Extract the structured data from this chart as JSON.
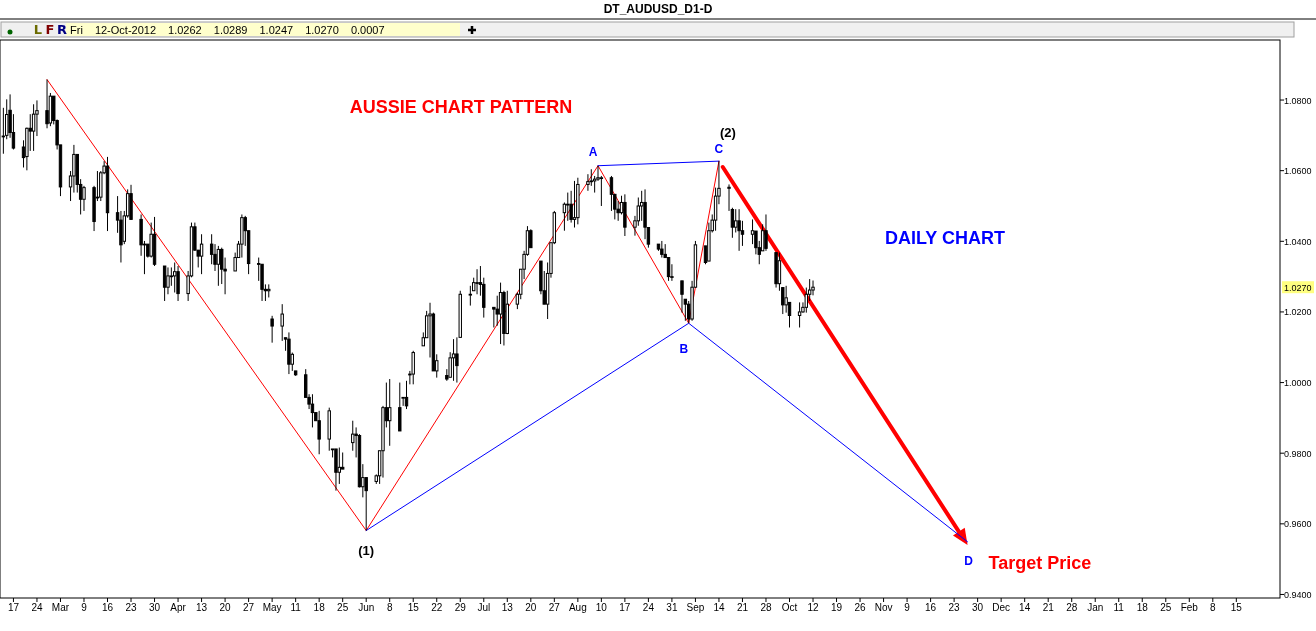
{
  "chart_data": {
    "type": "candlestick",
    "title": "DT_AUDUSD_D1-D",
    "subtitle": "Fri 12-Oct-2012 1.0262 1.0289 1.0247 1.0270 0.0007",
    "xlim": [
      "2012-02-13",
      "2013-02-28"
    ],
    "ylim": [
      0.939,
      1.097
    ],
    "yticks": [
      {
        "value": 0.94,
        "label": "0.9400"
      },
      {
        "value": 0.96,
        "label": "0.9600"
      },
      {
        "value": 0.98,
        "label": "0.9800"
      },
      {
        "value": 1.0,
        "label": "1.0000"
      },
      {
        "value": 1.02,
        "label": "1.0200"
      },
      {
        "value": 1.04,
        "label": "1.0400"
      },
      {
        "value": 1.06,
        "label": "1.0600"
      },
      {
        "value": 1.08,
        "label": "1.0800"
      }
    ],
    "xticks": [
      {
        "value": "2012-02-17",
        "label": "17"
      },
      {
        "value": "2012-02-24",
        "label": "24"
      },
      {
        "value": "2012-03-02",
        "label": "Mar"
      },
      {
        "value": "2012-03-09",
        "label": "9"
      },
      {
        "value": "2012-03-16",
        "label": "16"
      },
      {
        "value": "2012-03-23",
        "label": "23"
      },
      {
        "value": "2012-03-30",
        "label": "30"
      },
      {
        "value": "2012-04-06",
        "label": "Apr"
      },
      {
        "value": "2012-04-13",
        "label": "13"
      },
      {
        "value": "2012-04-20",
        "label": "20"
      },
      {
        "value": "2012-04-27",
        "label": "27"
      },
      {
        "value": "2012-05-04",
        "label": "May"
      },
      {
        "value": "2012-05-11",
        "label": "11"
      },
      {
        "value": "2012-05-18",
        "label": "18"
      },
      {
        "value": "2012-05-25",
        "label": "25"
      },
      {
        "value": "2012-06-01",
        "label": "Jun"
      },
      {
        "value": "2012-06-08",
        "label": "8"
      },
      {
        "value": "2012-06-15",
        "label": "15"
      },
      {
        "value": "2012-06-22",
        "label": "22"
      },
      {
        "value": "2012-06-29",
        "label": "29"
      },
      {
        "value": "2012-07-06",
        "label": "Jul"
      },
      {
        "value": "2012-07-13",
        "label": "13"
      },
      {
        "value": "2012-07-20",
        "label": "20"
      },
      {
        "value": "2012-07-27",
        "label": "27"
      },
      {
        "value": "2012-08-03",
        "label": "Aug"
      },
      {
        "value": "2012-08-10",
        "label": "10"
      },
      {
        "value": "2012-08-17",
        "label": "17"
      },
      {
        "value": "2012-08-24",
        "label": "24"
      },
      {
        "value": "2012-08-31",
        "label": "31"
      },
      {
        "value": "2012-09-07",
        "label": "Sep"
      },
      {
        "value": "2012-09-14",
        "label": "14"
      },
      {
        "value": "2012-09-21",
        "label": "21"
      },
      {
        "value": "2012-09-28",
        "label": "28"
      },
      {
        "value": "2012-10-05",
        "label": "Oct"
      },
      {
        "value": "2012-10-12",
        "label": "12"
      },
      {
        "value": "2012-10-19",
        "label": "19"
      },
      {
        "value": "2012-10-26",
        "label": "26"
      },
      {
        "value": "2012-11-02",
        "label": "Nov"
      },
      {
        "value": "2012-11-09",
        "label": "9"
      },
      {
        "value": "2012-11-16",
        "label": "16"
      },
      {
        "value": "2012-11-23",
        "label": "23"
      },
      {
        "value": "2012-11-30",
        "label": "30"
      },
      {
        "value": "2012-12-07",
        "label": "Dec"
      },
      {
        "value": "2012-12-14",
        "label": "14"
      },
      {
        "value": "2012-12-21",
        "label": "21"
      },
      {
        "value": "2012-12-28",
        "label": "28"
      },
      {
        "value": "2013-01-04",
        "label": "Jan"
      },
      {
        "value": "2013-01-11",
        "label": "11"
      },
      {
        "value": "2013-01-18",
        "label": "18"
      },
      {
        "value": "2013-01-25",
        "label": "25"
      },
      {
        "value": "2013-02-01",
        "label": "Feb"
      },
      {
        "value": "2013-02-08",
        "label": "8"
      },
      {
        "value": "2013-02-15",
        "label": "15"
      }
    ],
    "series": [
      {
        "color": "#000000",
        "x": [
          "2012-02-14",
          "2012-02-15",
          "2012-02-16",
          "2012-02-17",
          "2012-02-20",
          "2012-02-21",
          "2012-02-22",
          "2012-02-23",
          "2012-02-24",
          "2012-02-27",
          "2012-02-28",
          "2012-02-29",
          "2012-03-01",
          "2012-03-02",
          "2012-03-05",
          "2012-03-06",
          "2012-03-07",
          "2012-03-08",
          "2012-03-09",
          "2012-03-12",
          "2012-03-13",
          "2012-03-14",
          "2012-03-15",
          "2012-03-16",
          "2012-03-19",
          "2012-03-20",
          "2012-03-21",
          "2012-03-22",
          "2012-03-23",
          "2012-03-26",
          "2012-03-27",
          "2012-03-28",
          "2012-03-29",
          "2012-03-30",
          "2012-04-02",
          "2012-04-03",
          "2012-04-04",
          "2012-04-05",
          "2012-04-06",
          "2012-04-09",
          "2012-04-10",
          "2012-04-11",
          "2012-04-12",
          "2012-04-13",
          "2012-04-16",
          "2012-04-17",
          "2012-04-18",
          "2012-04-19",
          "2012-04-20",
          "2012-04-23",
          "2012-04-24",
          "2012-04-25",
          "2012-04-26",
          "2012-04-27",
          "2012-04-30",
          "2012-05-01",
          "2012-05-02",
          "2012-05-03",
          "2012-05-04",
          "2012-05-07",
          "2012-05-08",
          "2012-05-09",
          "2012-05-10",
          "2012-05-11",
          "2012-05-14",
          "2012-05-15",
          "2012-05-16",
          "2012-05-17",
          "2012-05-18",
          "2012-05-21",
          "2012-05-22",
          "2012-05-23",
          "2012-05-24",
          "2012-05-25",
          "2012-05-28",
          "2012-05-29",
          "2012-05-30",
          "2012-05-31",
          "2012-06-01",
          "2012-06-04",
          "2012-06-05",
          "2012-06-06",
          "2012-06-07",
          "2012-06-08",
          "2012-06-11",
          "2012-06-12",
          "2012-06-13",
          "2012-06-14",
          "2012-06-15",
          "2012-06-18",
          "2012-06-19",
          "2012-06-20",
          "2012-06-21",
          "2012-06-22",
          "2012-06-25",
          "2012-06-26",
          "2012-06-27",
          "2012-06-28",
          "2012-06-29",
          "2012-07-02",
          "2012-07-03",
          "2012-07-04",
          "2012-07-05",
          "2012-07-06",
          "2012-07-09",
          "2012-07-10",
          "2012-07-11",
          "2012-07-12",
          "2012-07-13",
          "2012-07-16",
          "2012-07-17",
          "2012-07-18",
          "2012-07-19",
          "2012-07-20",
          "2012-07-23",
          "2012-07-24",
          "2012-07-25",
          "2012-07-26",
          "2012-07-27",
          "2012-07-30",
          "2012-07-31",
          "2012-08-01",
          "2012-08-02",
          "2012-08-03",
          "2012-08-06",
          "2012-08-07",
          "2012-08-08",
          "2012-08-09",
          "2012-08-10",
          "2012-08-13",
          "2012-08-14",
          "2012-08-15",
          "2012-08-16",
          "2012-08-17",
          "2012-08-20",
          "2012-08-21",
          "2012-08-22",
          "2012-08-23",
          "2012-08-24",
          "2012-08-27",
          "2012-08-28",
          "2012-08-29",
          "2012-08-30",
          "2012-08-31",
          "2012-09-03",
          "2012-09-04",
          "2012-09-05",
          "2012-09-06",
          "2012-09-07",
          "2012-09-10",
          "2012-09-11",
          "2012-09-12",
          "2012-09-13",
          "2012-09-14",
          "2012-09-17",
          "2012-09-18",
          "2012-09-19",
          "2012-09-20",
          "2012-09-21",
          "2012-09-24",
          "2012-09-25",
          "2012-09-26",
          "2012-09-27",
          "2012-09-28",
          "2012-10-01",
          "2012-10-02",
          "2012-10-03",
          "2012-10-04",
          "2012-10-05",
          "2012-10-08",
          "2012-10-09",
          "2012-10-10",
          "2012-10-11",
          "2012-10-12"
        ],
        "ohlc": [
          [
            1.0698,
            1.0778,
            1.0648,
            1.0698
          ],
          [
            1.07,
            1.0802,
            1.0689,
            1.0759
          ],
          [
            1.0771,
            1.0816,
            1.0693,
            1.0708
          ],
          [
            1.0708,
            1.076,
            1.066,
            1.0664
          ],
          [
            1.0667,
            1.0686,
            1.0609,
            1.0637
          ],
          [
            1.064,
            1.0722,
            1.0601,
            1.072
          ],
          [
            1.072,
            1.076,
            1.0656,
            1.0712
          ],
          [
            1.0712,
            1.0788,
            1.0656,
            1.076
          ],
          [
            1.076,
            1.0799,
            1.0698,
            1.077
          ],
          [
            1.077,
            1.0858,
            1.072,
            1.0733
          ],
          [
            1.0735,
            1.082,
            1.0726,
            1.0811
          ],
          [
            1.0811,
            1.0811,
            1.0731,
            1.0742
          ],
          [
            1.0742,
            1.0745,
            1.066,
            1.0673
          ],
          [
            1.0673,
            1.0673,
            1.0528,
            1.0554
          ],
          [
            1.0554,
            1.0599,
            1.0514,
            1.0585
          ],
          [
            1.0585,
            1.0673,
            1.0538,
            1.0646
          ],
          [
            1.0646,
            1.0646,
            1.0538,
            1.0561
          ],
          [
            1.0561,
            1.0576,
            1.0476,
            1.0519
          ],
          [
            1.0519,
            1.0557,
            1.0486,
            1.0552
          ],
          [
            1.0552,
            1.0557,
            1.0429,
            1.0456
          ],
          [
            1.0525,
            1.0599,
            1.0514,
            1.0525
          ],
          [
            1.0525,
            1.0599,
            1.0514,
            1.0594
          ],
          [
            1.0594,
            1.0627,
            1.059,
            1.0613
          ],
          [
            1.0613,
            1.0639,
            1.0429,
            1.0481
          ],
          [
            1.0481,
            1.0528,
            1.0424,
            1.046
          ],
          [
            1.046,
            1.0486,
            1.034,
            1.039
          ],
          [
            1.04,
            1.0486,
            1.0392,
            1.0472
          ],
          [
            1.0472,
            1.0547,
            1.0467,
            1.0535
          ],
          [
            1.0535,
            1.056,
            1.0462,
            1.0462
          ],
          [
            1.0462,
            1.0476,
            1.0359,
            1.039
          ],
          [
            1.039,
            1.0401,
            1.0307,
            1.0392
          ],
          [
            1.0392,
            1.0392,
            1.0354,
            1.0358
          ],
          [
            1.0358,
            1.0453,
            1.0354,
            1.042
          ],
          [
            1.042,
            1.0469,
            1.033,
            1.0335
          ],
          [
            1.033,
            1.033,
            1.0231,
            1.027
          ],
          [
            1.027,
            1.0326,
            1.025,
            1.0302
          ],
          [
            1.0302,
            1.0326,
            1.0274,
            1.0302
          ],
          [
            1.0302,
            1.034,
            1.0255,
            1.0314
          ],
          [
            1.0314,
            1.033,
            1.0231,
            1.0252
          ],
          [
            1.0252,
            1.0316,
            1.0231,
            1.0302
          ],
          [
            1.0302,
            1.0453,
            1.0298,
            1.0441
          ],
          [
            1.0441,
            1.0453,
            1.0373,
            1.0375
          ],
          [
            1.0375,
            1.0375,
            1.0326,
            1.0358
          ],
          [
            1.0358,
            1.042,
            1.0307,
            1.0392
          ],
          [
            1.0392,
            1.042,
            1.0335,
            1.0363
          ],
          [
            1.0363,
            1.0392,
            1.0316,
            1.0335
          ],
          [
            1.0335,
            1.0387,
            1.0274,
            1.0377
          ],
          [
            1.0377,
            1.0382,
            1.0279,
            1.0321
          ],
          [
            1.0321,
            1.0354,
            1.025,
            1.0316
          ],
          [
            1.0316,
            1.0368,
            1.0316,
            1.0354
          ],
          [
            1.0354,
            1.0401,
            1.0354,
            1.0392
          ],
          [
            1.0392,
            1.0476,
            1.0354,
            1.0467
          ],
          [
            1.0467,
            1.0472,
            1.0387,
            1.043
          ],
          [
            1.043,
            1.043,
            1.0307,
            1.0337
          ],
          [
            1.0337,
            1.0354,
            1.0288,
            1.0335
          ],
          [
            1.0335,
            1.0335,
            1.0231,
            1.0264
          ],
          [
            1.0264,
            1.0278,
            1.0231,
            1.026
          ],
          [
            1.026,
            1.0278,
            1.0241,
            1.0264
          ],
          [
            1.018,
            1.0189,
            1.0113,
            1.016
          ],
          [
            1.016,
            1.0222,
            1.0118,
            1.0194
          ],
          [
            1.0127,
            1.0127,
            1.009,
            1.0123
          ],
          [
            1.0123,
            1.0142,
            1.0024,
            1.0052
          ],
          [
            1.0052,
            1.0085,
            1.0033,
            1.008
          ],
          [
            1.0033,
            1.0033,
            1.0019,
            1.0022
          ],
          [
            1.0022,
            1.0038,
            0.9958,
            0.9958
          ],
          [
            0.9958,
            0.9967,
            0.9925,
            0.9939
          ],
          [
            0.9939,
            0.9967,
            0.9873,
            0.9915
          ],
          [
            0.9915,
            0.9915,
            0.9892,
            0.9892
          ],
          [
            0.9892,
            0.992,
            0.9797,
            0.984
          ],
          [
            0.984,
            0.9929,
            0.9807,
            0.992
          ],
          [
            0.9812,
            0.9812,
            0.9788,
            0.9812
          ],
          [
            0.9812,
            0.9812,
            0.9694,
            0.9746
          ],
          [
            0.9746,
            0.9816,
            0.9713,
            0.976
          ],
          [
            0.976,
            0.9802,
            0.9755,
            0.9755
          ],
          [
            0.983,
            0.9892,
            0.9807,
            0.9854
          ],
          [
            0.9854,
            0.9873,
            0.9788,
            0.985
          ],
          [
            0.985,
            0.9854,
            0.9703,
            0.9705
          ],
          [
            0.9705,
            0.9769,
            0.9675,
            0.9731
          ],
          [
            0.9731,
            0.9731,
            0.9581,
            0.9694
          ],
          [
            0.972,
            0.974,
            0.9713,
            0.9736
          ],
          [
            0.9736,
            0.9807,
            0.9713,
            0.9807
          ],
          [
            0.9807,
            0.9934,
            0.9731,
            0.9929
          ],
          [
            0.9929,
            1.0,
            0.9873,
            0.9892
          ],
          [
            0.9892,
            1.001,
            0.9821,
            0.9929
          ],
          [
            0.9929,
            1.0,
            0.9863,
            0.9863
          ],
          [
            0.9958,
            0.9958,
            0.9934,
            0.9958
          ],
          [
            0.9958,
            1.0005,
            0.9925,
            0.9934
          ],
          [
            1.0024,
            1.0033,
            0.9995,
            1.0024
          ],
          [
            1.0024,
            1.009,
            0.9995,
            1.0085
          ],
          [
            1.0104,
            1.0142,
            1.0104,
            1.0127
          ],
          [
            1.0127,
            1.0203,
            1.0127,
            1.0189
          ],
          [
            1.0189,
            1.0226,
            1.0071,
            1.0194
          ],
          [
            1.0194,
            1.0198,
            1.0033,
            1.0033
          ],
          [
            1.0033,
            1.008,
            1.0014,
            1.0062
          ],
          [
            1.002,
            1.0038,
            1.0005,
            1.001
          ],
          [
            1.0015,
            1.0086,
            1.0015,
            1.007
          ],
          [
            1.007,
            1.0123,
            1.0005,
            1.0081
          ],
          [
            1.0081,
            1.0128,
            1.0,
            1.0048
          ],
          [
            1.0128,
            1.026,
            1.0128,
            1.025
          ],
          [
            1.025,
            1.0274,
            1.0218,
            1.025
          ],
          [
            1.026,
            1.0297,
            1.026,
            1.0283
          ],
          [
            1.0283,
            1.0321,
            1.025,
            1.0283
          ],
          [
            1.0283,
            1.033,
            1.0246,
            1.0278
          ],
          [
            1.0278,
            1.0297,
            1.0184,
            1.0213
          ],
          [
            1.0213,
            1.0213,
            1.0156,
            1.0208
          ],
          [
            1.0208,
            1.0246,
            1.0161,
            1.0194
          ],
          [
            1.0194,
            1.0283,
            1.0109,
            1.0255
          ],
          [
            1.0255,
            1.026,
            1.0105,
            1.0139
          ],
          [
            1.0139,
            1.026,
            1.0137,
            1.0222
          ],
          [
            1.0222,
            1.0255,
            1.0208,
            1.025
          ],
          [
            1.025,
            1.0321,
            1.0236,
            1.0321
          ],
          [
            1.0321,
            1.0373,
            1.0293,
            1.0363
          ],
          [
            1.0363,
            1.0443,
            1.0359,
            1.043
          ],
          [
            1.043,
            1.0434,
            1.0382,
            1.0382
          ],
          [
            1.0344,
            1.0344,
            1.025,
            1.026
          ],
          [
            1.026,
            1.0316,
            1.0222,
            1.0222
          ],
          [
            1.0222,
            1.034,
            1.018,
            1.0309
          ],
          [
            1.0309,
            1.0396,
            1.0297,
            1.0396
          ],
          [
            1.0396,
            1.0486,
            1.0392,
            1.0481
          ],
          [
            1.0481,
            1.051,
            1.043,
            1.0505
          ],
          [
            1.0505,
            1.0538,
            1.0458,
            1.0505
          ],
          [
            1.0505,
            1.0543,
            1.0453,
            1.0462
          ],
          [
            1.0462,
            1.0571,
            1.0439,
            1.0467
          ],
          [
            1.0467,
            1.058,
            1.0448,
            1.0561
          ],
          [
            1.0561,
            1.059,
            1.0543,
            1.0569
          ],
          [
            1.0569,
            1.0604,
            1.0557,
            1.0571
          ],
          [
            1.0571,
            1.0585,
            1.0538,
            1.0576
          ],
          [
            1.0576,
            1.0614,
            1.0571,
            1.058
          ],
          [
            1.058,
            1.0585,
            1.05,
            1.058
          ],
          [
            1.058,
            1.0585,
            1.0486,
            1.0533
          ],
          [
            1.0533,
            1.0533,
            1.0462,
            1.0491
          ],
          [
            1.0491,
            1.0514,
            1.0458,
            1.0481
          ],
          [
            1.0481,
            1.0529,
            1.0476,
            1.051
          ],
          [
            1.051,
            1.0533,
            1.0415,
            1.044
          ],
          [
            1.044,
            1.0472,
            1.0416,
            1.0458
          ],
          [
            1.0458,
            1.0524,
            1.0444,
            1.05
          ],
          [
            1.05,
            1.0543,
            1.0458,
            1.051
          ],
          [
            1.051,
            1.0547,
            1.0406,
            1.044
          ],
          [
            1.0439,
            1.0439,
            1.0382,
            1.0392
          ],
          [
            1.0392,
            1.0392,
            1.0373,
            1.0378
          ],
          [
            1.0378,
            1.0401,
            1.0354,
            1.0363
          ],
          [
            1.0363,
            1.0392,
            1.0354,
            1.0354
          ],
          [
            1.0354,
            1.0354,
            1.0288,
            1.03
          ],
          [
            1.03,
            1.0335,
            1.0288,
            1.03
          ],
          [
            1.0288,
            1.0288,
            1.0198,
            1.025
          ],
          [
            1.0236,
            1.0236,
            1.0175,
            1.0222
          ],
          [
            1.0222,
            1.0231,
            1.0168,
            1.018
          ],
          [
            1.018,
            1.0288,
            1.0175,
            1.027
          ],
          [
            1.027,
            1.0401,
            1.0269,
            1.039
          ],
          [
            1.0387,
            1.0387,
            1.0335,
            1.034
          ],
          [
            1.0344,
            1.0453,
            1.0344,
            1.043
          ],
          [
            1.043,
            1.0476,
            1.0425,
            1.046
          ],
          [
            1.046,
            1.0552,
            1.043,
            1.0528
          ],
          [
            1.0528,
            1.0627,
            1.0505,
            1.055
          ],
          [
            1.055,
            1.0561,
            1.0486,
            1.0553
          ],
          [
            1.049,
            1.0495,
            1.041,
            1.044
          ],
          [
            1.044,
            1.0491,
            1.0425,
            1.0458
          ],
          [
            1.0458,
            1.0491,
            1.0373,
            1.043
          ],
          [
            1.043,
            1.0458,
            1.0387,
            1.042
          ],
          [
            1.042,
            1.0462,
            1.0392,
            1.043
          ],
          [
            1.0429,
            1.0429,
            1.0363,
            1.0382
          ],
          [
            1.0382,
            1.0401,
            1.0335,
            1.0363
          ],
          [
            1.0373,
            1.0448,
            1.0373,
            1.043
          ],
          [
            1.043,
            1.0476,
            1.0373,
            1.038
          ],
          [
            1.0368,
            1.0368,
            1.0269,
            1.028
          ],
          [
            1.028,
            1.0368,
            1.026,
            1.0345
          ],
          [
            1.0269,
            1.0269,
            1.0194,
            1.022
          ],
          [
            1.022,
            1.0274,
            1.0198,
            1.024
          ],
          [
            1.0227,
            1.0227,
            1.0156,
            1.019
          ],
          [
            1.019,
            1.0227,
            1.0156,
            1.02
          ],
          [
            1.02,
            1.0227,
            1.0198,
            1.0213
          ],
          [
            1.0213,
            1.0269,
            1.0198,
            1.025
          ],
          [
            1.025,
            1.0293,
            1.0231,
            1.0262
          ],
          [
            1.0262,
            1.0289,
            1.0247,
            1.027
          ]
        ]
      },
      {
        "type": "line",
        "color": "#ff0000",
        "x": [
          "2012-02-27",
          "2012-06-01",
          "2012-08-09",
          "2012-09-05",
          "2012-09-14"
        ],
        "values": [
          1.0858,
          0.9581,
          1.0614,
          1.0168,
          1.0627
        ]
      },
      {
        "type": "line",
        "color": "#0000ff",
        "x": [
          "2012-06-01",
          "2012-09-05",
          "2012-11-27"
        ],
        "values": [
          0.9581,
          1.0168,
          0.9549
        ]
      },
      {
        "type": "line",
        "color": "#0000ff",
        "x": [
          "2012-08-09",
          "2012-09-14"
        ],
        "values": [
          1.0614,
          1.0627
        ]
      }
    ],
    "annotations": [
      "AUSSIE CHART PATTERN",
      "DAILY CHART",
      {
        "text": "(1)",
        "x": "2012-06-01",
        "y": 0.9581
      },
      {
        "text": "A",
        "x": "2012-08-09",
        "y": 1.0614
      },
      {
        "text": "B",
        "x": "2012-09-05",
        "y": 1.0168
      },
      {
        "text": "C",
        "x": "2012-09-14",
        "y": 1.0627
      },
      {
        "text": "(2)",
        "x": "2012-09-14",
        "y": 1.0627
      },
      {
        "text": "D",
        "x": "2012-11-27",
        "y": 0.9549
      },
      {
        "text": "Target Price",
        "x": "2012-11-27",
        "y": 0.954
      },
      "1.0270",
      "L",
      "F",
      "R"
    ]
  }
}
